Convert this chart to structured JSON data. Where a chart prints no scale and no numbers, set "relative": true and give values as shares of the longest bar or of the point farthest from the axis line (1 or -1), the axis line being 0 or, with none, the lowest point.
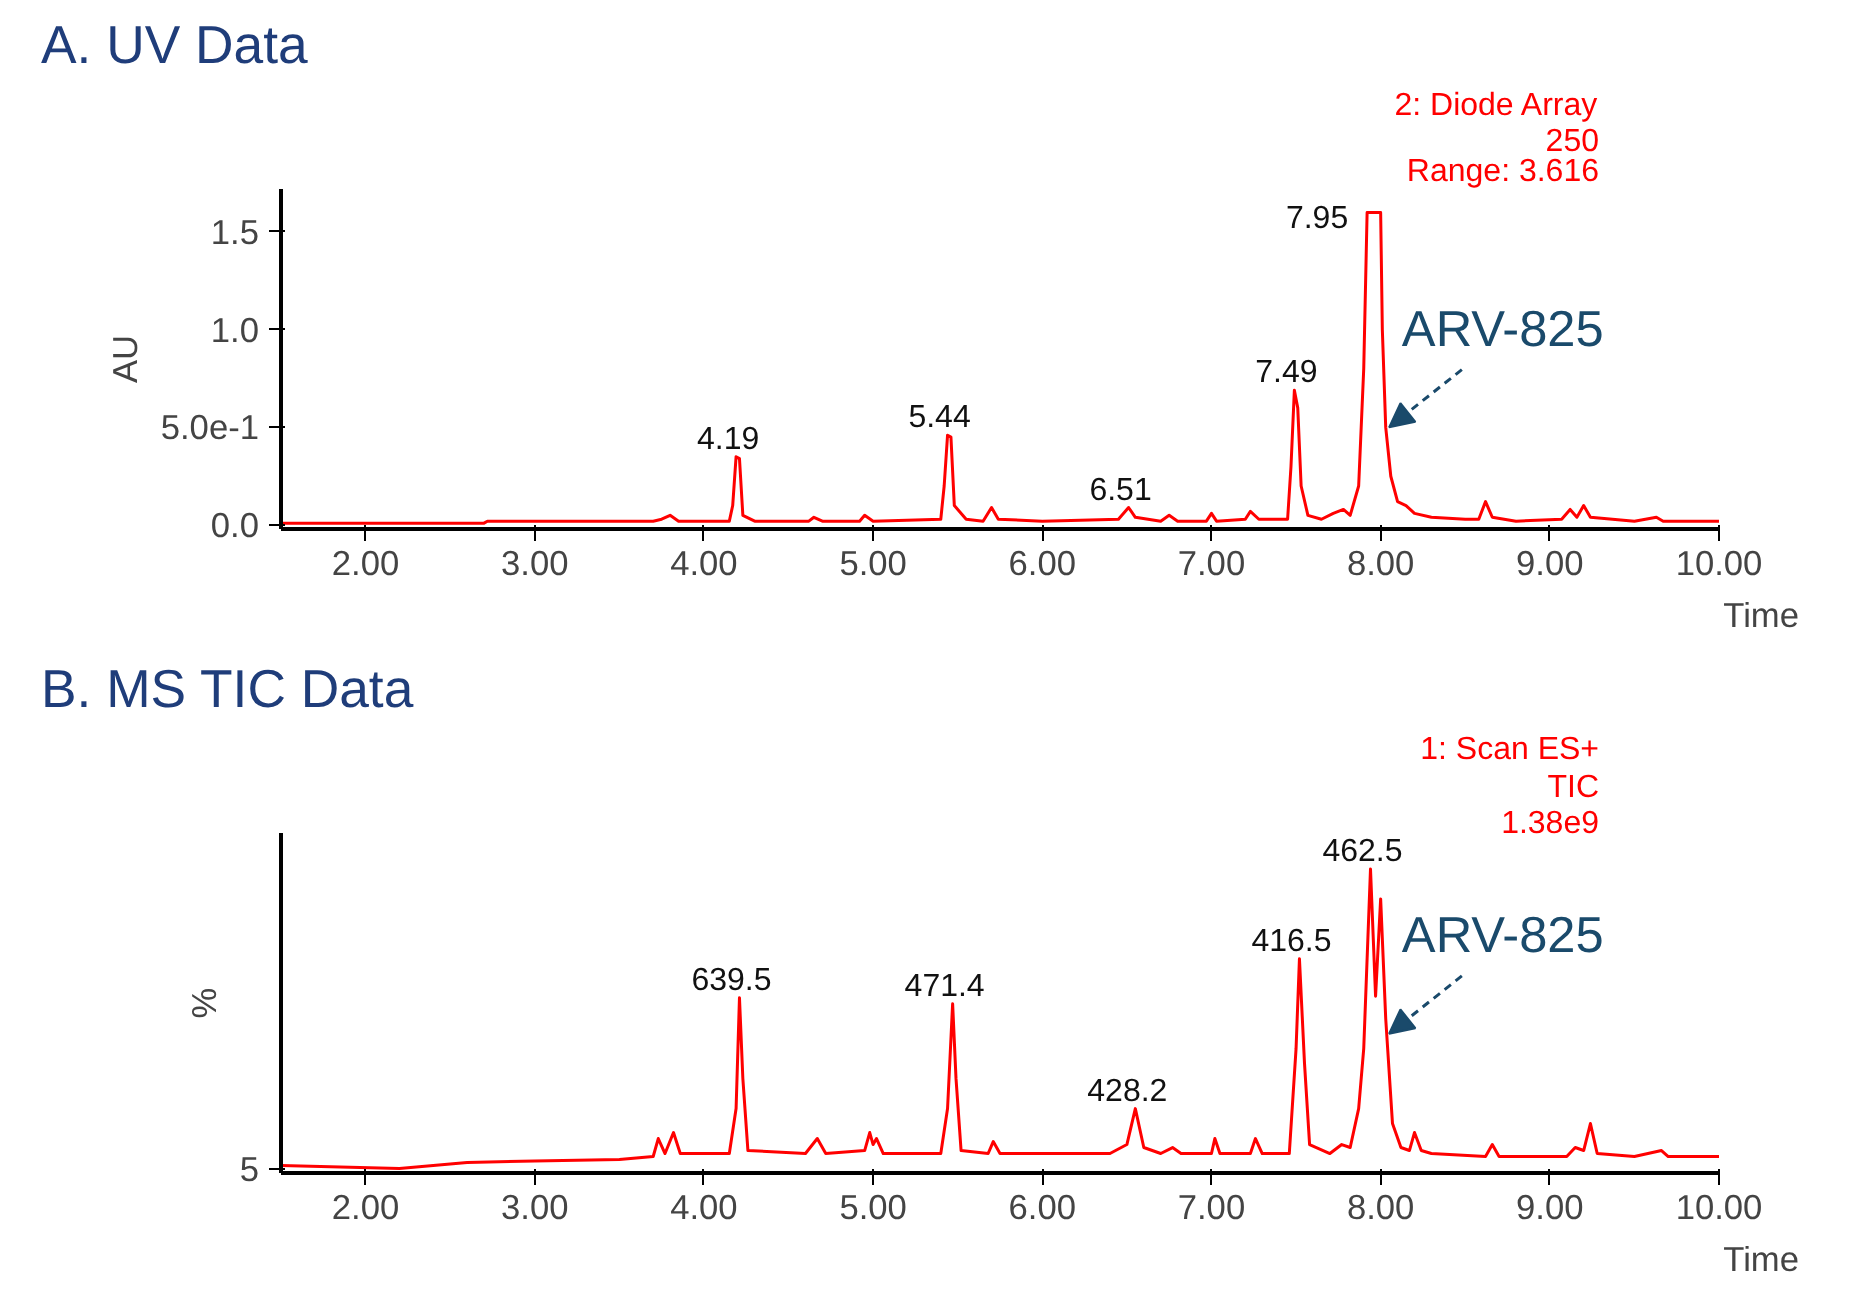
{
  "chart_data": [
    {
      "type": "line",
      "title": "A. UV Data",
      "xlabel": "Time",
      "ylabel": "AU",
      "grid": false,
      "marker": "none",
      "line_style": "solid",
      "xlim": [
        1.5,
        10.0
      ],
      "ylim": [
        -0.02,
        1.72
      ],
      "xticks": [
        {
          "value": 2,
          "label": "2.00"
        },
        {
          "value": 3,
          "label": "3.00"
        },
        {
          "value": 4,
          "label": "4.00"
        },
        {
          "value": 5,
          "label": "5.00"
        },
        {
          "value": 6,
          "label": "6.00"
        },
        {
          "value": 7,
          "label": "7.00"
        },
        {
          "value": 8,
          "label": "8.00"
        },
        {
          "value": 9,
          "label": "9.00"
        },
        {
          "value": 10,
          "label": "10.00"
        }
      ],
      "yticks": [
        {
          "value": 0,
          "label": "0.0"
        },
        {
          "value": 0.5,
          "label": "5.0e-1"
        },
        {
          "value": 1.0,
          "label": "1.0"
        },
        {
          "value": 1.5,
          "label": "1.5"
        }
      ],
      "series": [
        {
          "color": "#ff0000",
          "x": [
            1.5,
            1.6,
            1.65,
            2.7,
            2.72,
            3.7,
            3.75,
            3.8,
            3.85,
            4.15,
            4.17,
            4.19,
            4.21,
            4.23,
            4.3,
            4.62,
            4.65,
            4.7,
            4.92,
            4.95,
            5.0,
            5.4,
            5.42,
            5.44,
            5.46,
            5.48,
            5.55,
            5.65,
            5.7,
            5.74,
            6.0,
            6.45,
            6.51,
            6.55,
            6.7,
            6.75,
            6.8,
            6.97,
            7.0,
            7.03,
            7.2,
            7.23,
            7.28,
            7.45,
            7.47,
            7.49,
            7.51,
            7.53,
            7.57,
            7.65,
            7.72,
            7.78,
            7.82,
            7.87,
            7.9,
            7.92,
            8.0,
            8.01,
            8.03,
            8.06,
            8.1,
            8.15,
            8.2,
            8.3,
            8.5,
            8.58,
            8.62,
            8.66,
            8.8,
            9.07,
            9.12,
            9.16,
            9.2,
            9.24,
            9.5,
            9.63,
            9.67,
            10.0
          ],
          "values": [
            0.01,
            0.01,
            0.01,
            0.01,
            0.02,
            0.02,
            0.03,
            0.05,
            0.02,
            0.02,
            0.1,
            0.35,
            0.34,
            0.05,
            0.02,
            0.02,
            0.04,
            0.02,
            0.02,
            0.05,
            0.02,
            0.03,
            0.2,
            0.46,
            0.45,
            0.1,
            0.03,
            0.02,
            0.09,
            0.03,
            0.02,
            0.03,
            0.09,
            0.04,
            0.02,
            0.05,
            0.02,
            0.02,
            0.06,
            0.02,
            0.03,
            0.07,
            0.03,
            0.03,
            0.3,
            0.69,
            0.6,
            0.2,
            0.05,
            0.03,
            0.06,
            0.08,
            0.05,
            0.2,
            0.8,
            1.6,
            1.6,
            1.0,
            0.5,
            0.25,
            0.12,
            0.1,
            0.06,
            0.04,
            0.03,
            0.03,
            0.12,
            0.04,
            0.02,
            0.03,
            0.08,
            0.04,
            0.1,
            0.04,
            0.02,
            0.04,
            0.02,
            0.02
          ]
        }
      ],
      "annotations": [
        {
          "text": "4.19",
          "x": 4.19,
          "y": 0.35
        },
        {
          "text": "5.44",
          "x": 5.44,
          "y": 0.46
        },
        {
          "text": "6.51",
          "x": 6.51,
          "y": 0.09
        },
        {
          "text": "7.49",
          "x": 7.49,
          "y": 0.69
        },
        {
          "text": "7.95",
          "x": 7.95,
          "y": 1.6
        },
        {
          "text": "ARV-825",
          "x": 8.03,
          "y": 0.5
        },
        "2: Diode Array",
        "250",
        "Range: 3.616"
      ]
    },
    {
      "type": "line",
      "title": "B. MS TIC Data",
      "xlabel": "Time",
      "ylabel": "%",
      "grid": false,
      "marker": "none",
      "line_style": "solid",
      "relative": true,
      "xlim": [
        1.5,
        10.0
      ],
      "xticks": [
        {
          "value": 2,
          "label": "2.00"
        },
        {
          "value": 3,
          "label": "3.00"
        },
        {
          "value": 4,
          "label": "4.00"
        },
        {
          "value": 5,
          "label": "5.00"
        },
        {
          "value": 6,
          "label": "6.00"
        },
        {
          "value": 7,
          "label": "7.00"
        },
        {
          "value": 8,
          "label": "8.00"
        },
        {
          "value": 9,
          "label": "9.00"
        },
        {
          "value": 10,
          "label": "10.00"
        }
      ],
      "series": [
        {
          "color": "#ff0000",
          "x": [
            1.5,
            2.2,
            2.6,
            3.0,
            3.5,
            3.7,
            3.73,
            3.77,
            3.82,
            3.86,
            4.15,
            4.19,
            4.21,
            4.23,
            4.26,
            4.6,
            4.67,
            4.72,
            4.95,
            4.98,
            5.0,
            5.02,
            5.06,
            5.4,
            5.44,
            5.47,
            5.49,
            5.52,
            5.68,
            5.71,
            5.75,
            6.4,
            6.5,
            6.55,
            6.6,
            6.7,
            6.77,
            6.82,
            7.0,
            7.02,
            7.05,
            7.23,
            7.26,
            7.3,
            7.46,
            7.5,
            7.52,
            7.55,
            7.58,
            7.7,
            7.77,
            7.82,
            7.87,
            7.9,
            7.94,
            7.97,
            8.0,
            8.03,
            8.07,
            8.12,
            8.17,
            8.2,
            8.24,
            8.3,
            8.62,
            8.66,
            8.7,
            9.1,
            9.15,
            9.2,
            9.24,
            9.28,
            9.5,
            9.66,
            9.7,
            10.0
          ],
          "values": [
            0.01,
            0.0,
            0.02,
            0.025,
            0.03,
            0.04,
            0.1,
            0.05,
            0.12,
            0.05,
            0.05,
            0.2,
            0.57,
            0.3,
            0.06,
            0.05,
            0.1,
            0.05,
            0.06,
            0.12,
            0.08,
            0.1,
            0.05,
            0.05,
            0.2,
            0.55,
            0.3,
            0.06,
            0.05,
            0.09,
            0.05,
            0.05,
            0.08,
            0.2,
            0.07,
            0.05,
            0.07,
            0.05,
            0.05,
            0.1,
            0.05,
            0.05,
            0.1,
            0.05,
            0.05,
            0.4,
            0.7,
            0.35,
            0.08,
            0.05,
            0.08,
            0.07,
            0.2,
            0.4,
            1.0,
            0.575,
            0.9,
            0.5,
            0.15,
            0.07,
            0.06,
            0.12,
            0.06,
            0.05,
            0.04,
            0.08,
            0.04,
            0.04,
            0.07,
            0.06,
            0.15,
            0.05,
            0.04,
            0.06,
            0.04,
            0.04
          ]
        }
      ],
      "annotations": [
        {
          "text": "639.5",
          "x": 4.21,
          "y": 0.57
        },
        {
          "text": "471.4",
          "x": 5.47,
          "y": 0.55
        },
        {
          "text": "428.2",
          "x": 6.55,
          "y": 0.2
        },
        {
          "text": "416.5",
          "x": 7.52,
          "y": 0.7
        },
        {
          "text": "462.5",
          "x": 7.94,
          "y": 1.0
        },
        {
          "text": "ARV-825",
          "x": 8.03,
          "y": 0.45
        },
        "1: Scan ES+",
        "TIC",
        "1.38e9",
        "5"
      ]
    }
  ]
}
